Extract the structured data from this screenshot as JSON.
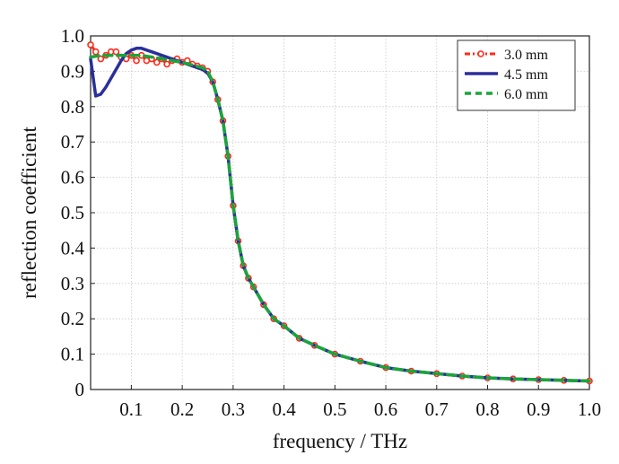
{
  "chart_data": {
    "type": "line",
    "title": "",
    "xlabel": "frequency / THz",
    "ylabel": "reflection coefficient",
    "xlim": [
      0.02,
      1.0
    ],
    "ylim": [
      0.0,
      1.0
    ],
    "x_ticks": [
      0.1,
      0.2,
      0.3,
      0.4,
      0.5,
      0.6,
      0.7,
      0.8,
      0.9,
      1.0
    ],
    "x_tick_labels": [
      "0.1",
      "0.2",
      "0.3",
      "0.4",
      "0.5",
      "0.6",
      "0.7",
      "0.8",
      "0.9",
      "1.0"
    ],
    "y_ticks": [
      0.0,
      0.1,
      0.2,
      0.3,
      0.4,
      0.5,
      0.6,
      0.7,
      0.8,
      0.9,
      1.0
    ],
    "y_tick_labels": [
      "0",
      "0.1",
      "0.2",
      "0.3",
      "0.4",
      "0.5",
      "0.6",
      "0.7",
      "0.8",
      "0.9",
      "1.0"
    ],
    "grid": true,
    "legend_position": "top-right",
    "series": [
      {
        "name": "3.0 mm",
        "color": "#ff2a1a",
        "style": "dash-dot with circle markers",
        "x": [
          0.02,
          0.03,
          0.04,
          0.05,
          0.06,
          0.07,
          0.08,
          0.09,
          0.1,
          0.11,
          0.12,
          0.13,
          0.14,
          0.15,
          0.16,
          0.17,
          0.18,
          0.19,
          0.2,
          0.21,
          0.22,
          0.23,
          0.24,
          0.25,
          0.26,
          0.27,
          0.28,
          0.29,
          0.3,
          0.31,
          0.32,
          0.33,
          0.34,
          0.36,
          0.38,
          0.4,
          0.43,
          0.46,
          0.5,
          0.55,
          0.6,
          0.65,
          0.7,
          0.75,
          0.8,
          0.85,
          0.9,
          0.95,
          1.0
        ],
        "y": [
          0.975,
          0.955,
          0.935,
          0.945,
          0.955,
          0.955,
          0.94,
          0.935,
          0.945,
          0.93,
          0.945,
          0.93,
          0.935,
          0.925,
          0.935,
          0.92,
          0.93,
          0.935,
          0.925,
          0.93,
          0.92,
          0.915,
          0.91,
          0.9,
          0.87,
          0.82,
          0.76,
          0.66,
          0.52,
          0.42,
          0.35,
          0.315,
          0.29,
          0.24,
          0.2,
          0.18,
          0.145,
          0.125,
          0.1,
          0.08,
          0.062,
          0.052,
          0.045,
          0.038,
          0.033,
          0.03,
          0.028,
          0.026,
          0.024
        ]
      },
      {
        "name": "4.5 mm",
        "color": "#2a2f9a",
        "style": "solid",
        "x": [
          0.02,
          0.03,
          0.04,
          0.05,
          0.06,
          0.07,
          0.08,
          0.09,
          0.1,
          0.11,
          0.12,
          0.13,
          0.14,
          0.15,
          0.16,
          0.17,
          0.18,
          0.19,
          0.2,
          0.21,
          0.22,
          0.23,
          0.24,
          0.25,
          0.26,
          0.27,
          0.28,
          0.29,
          0.3,
          0.31,
          0.32,
          0.33,
          0.34,
          0.36,
          0.38,
          0.4,
          0.43,
          0.46,
          0.5,
          0.55,
          0.6,
          0.65,
          0.7,
          0.75,
          0.8,
          0.85,
          0.9,
          0.95,
          1.0
        ],
        "y": [
          0.935,
          0.83,
          0.835,
          0.855,
          0.88,
          0.905,
          0.93,
          0.95,
          0.96,
          0.965,
          0.965,
          0.96,
          0.955,
          0.95,
          0.945,
          0.94,
          0.935,
          0.93,
          0.925,
          0.92,
          0.915,
          0.91,
          0.905,
          0.895,
          0.87,
          0.82,
          0.76,
          0.66,
          0.52,
          0.42,
          0.35,
          0.315,
          0.29,
          0.24,
          0.2,
          0.18,
          0.145,
          0.125,
          0.1,
          0.08,
          0.062,
          0.052,
          0.045,
          0.038,
          0.033,
          0.03,
          0.028,
          0.026,
          0.024
        ]
      },
      {
        "name": "6.0 mm",
        "color": "#1aa53a",
        "style": "dashed",
        "x": [
          0.02,
          0.04,
          0.06,
          0.08,
          0.1,
          0.12,
          0.14,
          0.16,
          0.18,
          0.2,
          0.22,
          0.24,
          0.25,
          0.26,
          0.27,
          0.28,
          0.29,
          0.3,
          0.31,
          0.32,
          0.33,
          0.34,
          0.36,
          0.38,
          0.4,
          0.43,
          0.46,
          0.5,
          0.55,
          0.6,
          0.65,
          0.7,
          0.75,
          0.8,
          0.85,
          0.9,
          0.95,
          1.0
        ],
        "y": [
          0.94,
          0.945,
          0.945,
          0.945,
          0.945,
          0.945,
          0.94,
          0.935,
          0.93,
          0.925,
          0.918,
          0.91,
          0.9,
          0.87,
          0.82,
          0.76,
          0.66,
          0.52,
          0.42,
          0.35,
          0.315,
          0.29,
          0.24,
          0.2,
          0.18,
          0.145,
          0.125,
          0.1,
          0.08,
          0.062,
          0.052,
          0.045,
          0.038,
          0.033,
          0.03,
          0.028,
          0.026,
          0.024
        ]
      }
    ]
  }
}
